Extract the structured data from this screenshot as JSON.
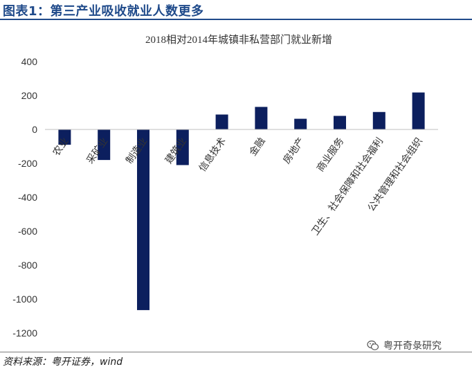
{
  "figure": {
    "label": "图表1：第三产业吸收就业人数更多",
    "source": "资料来源：粤开证券，wind",
    "watermark": "粤开奇彔研究",
    "bar_color": "#0c1f5e",
    "title_color": "#1f4a8a"
  },
  "chart_data": {
    "type": "bar",
    "title": "2018相对2014年城镇非私营部门就业新增",
    "xlabel": "",
    "ylabel": "",
    "ylim": [
      -1200,
      400
    ],
    "yticks": [
      400,
      200,
      0,
      -200,
      -400,
      -600,
      -800,
      -1000,
      -1200
    ],
    "grid": false,
    "categories": [
      "农业",
      "采矿业",
      "制造业",
      "建筑业",
      "信息技术",
      "金融",
      "房地产",
      "商业服务",
      "卫生、社会保障和社会福利",
      "公共管理和社会组织"
    ],
    "values": [
      -90,
      -180,
      -1065,
      -210,
      88,
      133,
      63,
      80,
      103,
      218
    ]
  }
}
